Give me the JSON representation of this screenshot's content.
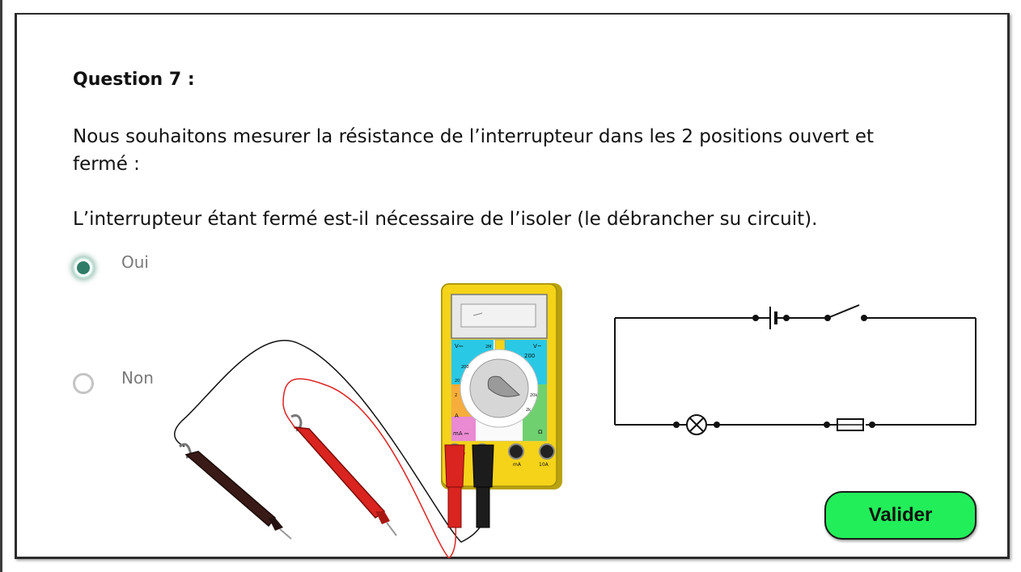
{
  "question": {
    "title": "Question 7 :",
    "text": "Nous souhaitons mesurer la résistance de l’interrupteur dans les 2 positions ouvert et fermé :",
    "subtext": "L’interrupteur étant fermé est-il nécessaire de l’isoler (le débrancher su circuit)."
  },
  "options": [
    {
      "label": "Oui",
      "selected": true
    },
    {
      "label": "Non",
      "selected": false
    }
  ],
  "multimeter": {
    "dial_labels": [
      "V⎓",
      "V~",
      "A",
      "mA ⎓",
      "Ω",
      "200",
      "2M",
      "20k",
      "2k",
      "200",
      "20",
      "2",
      "10A",
      "mA"
    ]
  },
  "submit": {
    "label": "Valider"
  },
  "colors": {
    "accent": "#2f7d68",
    "button": "#22ee5a",
    "meter_body": "#f4d319",
    "probe_red": "#d9241f",
    "probe_black": "#2a1010"
  }
}
